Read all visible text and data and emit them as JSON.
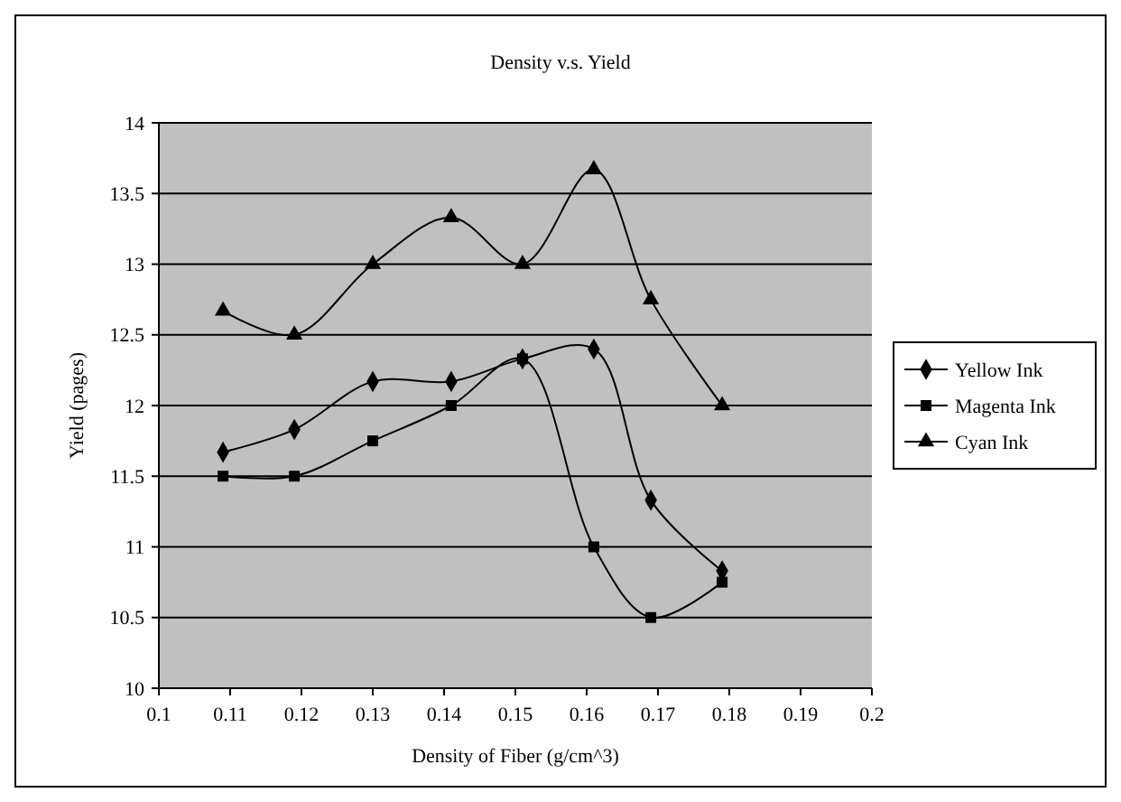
{
  "chart_data": {
    "type": "line",
    "title": "Density v.s. Yield",
    "xlabel": "Density of Fiber (g/cm^3)",
    "ylabel": "Yield (pages)",
    "x": [
      0.109,
      0.119,
      0.13,
      0.141,
      0.151,
      0.161,
      0.169,
      0.179
    ],
    "xlim": [
      0.1,
      0.2
    ],
    "xticks": [
      0.1,
      0.11,
      0.12,
      0.13,
      0.14,
      0.15,
      0.16,
      0.17,
      0.18,
      0.19,
      0.2
    ],
    "ylim": [
      10,
      14
    ],
    "yticks": [
      10,
      10.5,
      11,
      11.5,
      12,
      12.5,
      13,
      13.5,
      14
    ],
    "grid": "y",
    "legend": "right",
    "series": [
      {
        "name": "Yellow Ink",
        "color": "#000000",
        "marker": "diamond",
        "values": [
          11.67,
          11.83,
          12.17,
          12.17,
          12.33,
          12.4,
          11.33,
          10.83
        ]
      },
      {
        "name": "Magenta Ink",
        "color": "#000000",
        "marker": "square",
        "values": [
          11.5,
          11.5,
          11.75,
          12,
          12.33,
          11,
          10.5,
          10.75
        ]
      },
      {
        "name": "Cyan Ink",
        "color": "#000000",
        "marker": "triangle",
        "values": [
          12.67,
          12.5,
          13,
          13.33,
          13,
          13.67,
          12.75,
          12
        ]
      }
    ]
  }
}
